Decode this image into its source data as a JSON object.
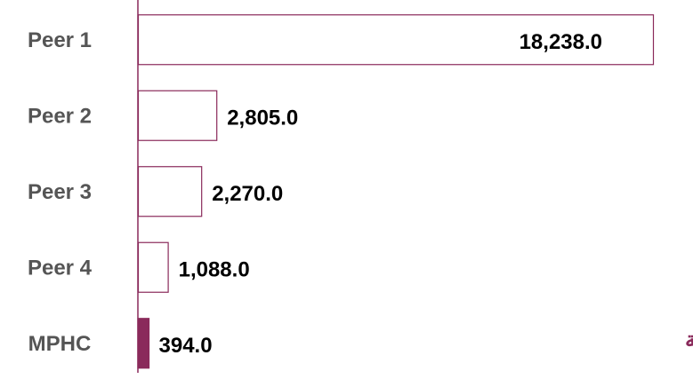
{
  "chart_data": {
    "type": "hbar",
    "categories": [
      "Peer 1",
      "Peer 2",
      "Peer 3",
      "Peer 4",
      "MPHC"
    ],
    "values": [
      18238,
      2805,
      2270,
      1088,
      394
    ],
    "value_labels": [
      "18,238.0",
      "2,805.0",
      "2,270.0",
      "1,088.0",
      "394.0"
    ],
    "bar_fills": [
      "#ffffff",
      "#ffffff",
      "#ffffff",
      "#ffffff",
      "#8a2a5b"
    ],
    "color": "#8a2a5b",
    "xlim": [
      0,
      18238
    ],
    "annotation": "تحتل مسيعيد المرتبة الخامسة"
  }
}
